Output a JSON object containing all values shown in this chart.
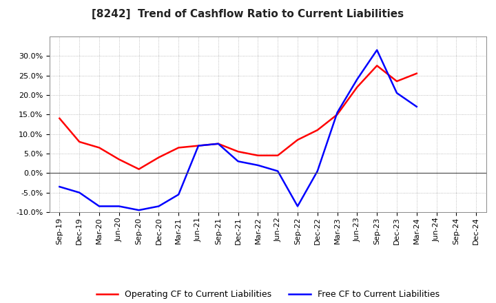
{
  "title": "[8242]  Trend of Cashflow Ratio to Current Liabilities",
  "x_labels": [
    "Sep-19",
    "Dec-19",
    "Mar-20",
    "Jun-20",
    "Sep-20",
    "Dec-20",
    "Mar-21",
    "Jun-21",
    "Sep-21",
    "Dec-21",
    "Mar-22",
    "Jun-22",
    "Sep-22",
    "Dec-22",
    "Mar-23",
    "Jun-23",
    "Sep-23",
    "Dec-23",
    "Mar-24",
    "Jun-24",
    "Sep-24",
    "Dec-24"
  ],
  "operating_cf": [
    14.0,
    8.0,
    6.5,
    3.5,
    1.0,
    4.0,
    6.5,
    7.0,
    7.5,
    5.5,
    4.5,
    4.5,
    8.5,
    11.0,
    15.0,
    22.0,
    27.5,
    23.5,
    25.5,
    null,
    null,
    null
  ],
  "free_cf": [
    -3.5,
    -5.0,
    -8.5,
    -8.5,
    -9.5,
    -8.5,
    -5.5,
    7.0,
    7.5,
    3.0,
    2.0,
    0.5,
    -8.5,
    0.5,
    15.5,
    24.0,
    31.5,
    20.5,
    17.0,
    null,
    null,
    null
  ],
  "operating_color": "#ff0000",
  "free_color": "#0000ff",
  "ylim": [
    -10.0,
    35.0
  ],
  "yticks": [
    -10.0,
    -5.0,
    0.0,
    5.0,
    10.0,
    15.0,
    20.0,
    25.0,
    30.0
  ],
  "background_color": "#ffffff",
  "plot_bg_color": "#ffffff",
  "grid_color": "#aaaaaa",
  "legend_op": "Operating CF to Current Liabilities",
  "legend_free": "Free CF to Current Liabilities",
  "title_fontsize": 11,
  "axis_fontsize": 8,
  "legend_fontsize": 9,
  "line_width": 1.8
}
